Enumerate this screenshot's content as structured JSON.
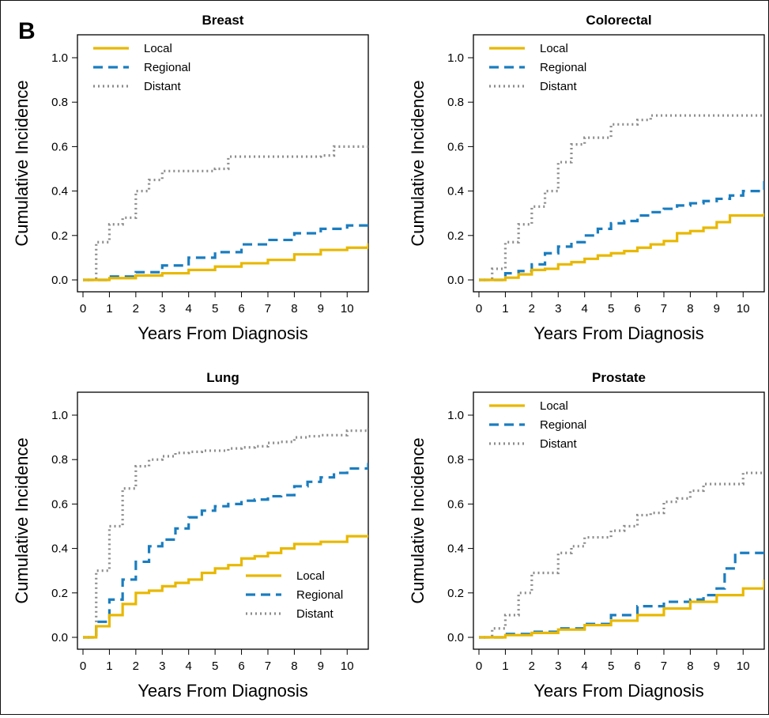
{
  "figure": {
    "panel_letter": "B"
  },
  "chart_data": [
    {
      "type": "line",
      "title": "Breast",
      "xlabel": "Years From Diagnosis",
      "ylabel": "Cumulative Incidence",
      "xlim": [
        0,
        10.8
      ],
      "ylim": [
        0,
        1.0
      ],
      "xticks": [
        "0",
        "1",
        "2",
        "3",
        "4",
        "5",
        "6",
        "7",
        "8",
        "9",
        "10"
      ],
      "yticks": [
        "0.0",
        "0.2",
        "0.4",
        "0.6",
        "0.8",
        "1.0"
      ],
      "legend": "top-left",
      "series": [
        {
          "name": "Local",
          "color": "#E8B800",
          "style": "solid",
          "x": [
            0,
            1,
            2,
            3,
            4,
            5,
            6,
            7,
            8,
            9,
            10,
            10.8
          ],
          "y": [
            0,
            0.008,
            0.02,
            0.03,
            0.045,
            0.06,
            0.075,
            0.09,
            0.115,
            0.135,
            0.145,
            0.165
          ]
        },
        {
          "name": "Regional",
          "color": "#1A7DC0",
          "style": "dashed",
          "x": [
            0,
            1,
            2,
            3,
            4,
            5,
            6,
            7,
            8,
            9,
            10,
            10.8
          ],
          "y": [
            0,
            0.015,
            0.035,
            0.065,
            0.1,
            0.125,
            0.16,
            0.18,
            0.21,
            0.23,
            0.245,
            0.265
          ]
        },
        {
          "name": "Distant",
          "color": "#8C8C8C",
          "style": "dotted",
          "x": [
            0,
            0.5,
            1,
            1.5,
            2,
            2.5,
            3,
            3.5,
            4,
            4.5,
            5,
            5.5,
            6,
            7,
            8,
            9,
            9.5,
            10,
            10.8
          ],
          "y": [
            0,
            0.17,
            0.25,
            0.28,
            0.4,
            0.45,
            0.49,
            0.49,
            0.49,
            0.49,
            0.5,
            0.555,
            0.555,
            0.555,
            0.555,
            0.56,
            0.6,
            0.6,
            0.6
          ]
        }
      ]
    },
    {
      "type": "line",
      "title": "Colorectal",
      "xlabel": "Years From Diagnosis",
      "ylabel": "Cumulative Incidence",
      "xlim": [
        0,
        10.8
      ],
      "ylim": [
        0,
        1.0
      ],
      "xticks": [
        "0",
        "1",
        "2",
        "3",
        "4",
        "5",
        "6",
        "7",
        "8",
        "9",
        "10"
      ],
      "yticks": [
        "0.0",
        "0.2",
        "0.4",
        "0.6",
        "0.8",
        "1.0"
      ],
      "legend": "top-left",
      "series": [
        {
          "name": "Local",
          "color": "#E8B800",
          "style": "solid",
          "x": [
            0,
            1,
            1.5,
            2,
            2.5,
            3,
            3.5,
            4,
            4.5,
            5,
            5.5,
            6,
            6.5,
            7,
            7.5,
            8,
            8.5,
            9,
            9.5,
            10,
            10.8
          ],
          "y": [
            0,
            0.01,
            0.025,
            0.045,
            0.05,
            0.07,
            0.08,
            0.095,
            0.11,
            0.12,
            0.13,
            0.145,
            0.16,
            0.175,
            0.21,
            0.22,
            0.235,
            0.26,
            0.29,
            0.29,
            0.3
          ]
        },
        {
          "name": "Regional",
          "color": "#1A7DC0",
          "style": "dashed",
          "x": [
            0,
            1,
            1.5,
            2,
            2.5,
            3,
            3.5,
            4,
            4.5,
            5,
            5.5,
            6,
            6.5,
            7,
            7.5,
            8,
            8.5,
            9,
            9.5,
            10,
            10.8
          ],
          "y": [
            0,
            0.03,
            0.04,
            0.07,
            0.12,
            0.15,
            0.17,
            0.2,
            0.23,
            0.255,
            0.265,
            0.29,
            0.305,
            0.32,
            0.335,
            0.345,
            0.355,
            0.365,
            0.38,
            0.4,
            0.445
          ]
        },
        {
          "name": "Distant",
          "color": "#8C8C8C",
          "style": "dotted",
          "x": [
            0,
            0.5,
            1,
            1.5,
            2,
            2.5,
            3,
            3.5,
            4,
            4.5,
            5,
            5.5,
            6,
            6.5,
            7,
            8,
            9,
            10,
            10.8
          ],
          "y": [
            0,
            0.05,
            0.17,
            0.25,
            0.33,
            0.4,
            0.53,
            0.61,
            0.64,
            0.64,
            0.7,
            0.7,
            0.72,
            0.74,
            0.74,
            0.74,
            0.74,
            0.74,
            0.74
          ]
        }
      ]
    },
    {
      "type": "line",
      "title": "Lung",
      "xlabel": "Years From Diagnosis",
      "ylabel": "Cumulative Incidence",
      "xlim": [
        0,
        10.8
      ],
      "ylim": [
        0,
        1.0
      ],
      "xticks": [
        "0",
        "1",
        "2",
        "3",
        "4",
        "5",
        "6",
        "7",
        "8",
        "9",
        "10"
      ],
      "yticks": [
        "0.0",
        "0.2",
        "0.4",
        "0.6",
        "0.8",
        "1.0"
      ],
      "legend": "bottom-right",
      "series": [
        {
          "name": "Local",
          "color": "#E8B800",
          "style": "solid",
          "x": [
            0,
            0.5,
            1,
            1.5,
            2,
            2.5,
            3,
            3.5,
            4,
            4.5,
            5,
            5.5,
            6,
            6.5,
            7,
            7.5,
            8,
            8.5,
            9,
            9.5,
            10,
            10.8
          ],
          "y": [
            0,
            0.05,
            0.1,
            0.15,
            0.2,
            0.21,
            0.23,
            0.245,
            0.26,
            0.29,
            0.31,
            0.325,
            0.355,
            0.365,
            0.38,
            0.4,
            0.42,
            0.42,
            0.43,
            0.43,
            0.455,
            0.455
          ]
        },
        {
          "name": "Regional",
          "color": "#1A7DC0",
          "style": "dashed",
          "x": [
            0,
            0.5,
            1,
            1.5,
            2,
            2.5,
            3,
            3.5,
            4,
            4.5,
            5,
            5.5,
            6,
            6.5,
            7,
            7.5,
            8,
            8.5,
            9,
            9.5,
            10,
            10.8
          ],
          "y": [
            0,
            0.07,
            0.17,
            0.26,
            0.34,
            0.41,
            0.44,
            0.49,
            0.54,
            0.57,
            0.59,
            0.6,
            0.615,
            0.62,
            0.635,
            0.64,
            0.68,
            0.7,
            0.72,
            0.74,
            0.76,
            0.785
          ]
        },
        {
          "name": "Distant",
          "color": "#8C8C8C",
          "style": "dotted",
          "x": [
            0,
            0.5,
            1,
            1.5,
            2,
            2.5,
            3,
            3.5,
            4,
            4.5,
            5,
            5.5,
            6,
            6.5,
            7,
            7.5,
            8,
            8.5,
            9,
            9.5,
            10,
            10.8
          ],
          "y": [
            0,
            0.3,
            0.5,
            0.67,
            0.77,
            0.8,
            0.815,
            0.83,
            0.835,
            0.84,
            0.84,
            0.85,
            0.855,
            0.86,
            0.875,
            0.88,
            0.9,
            0.905,
            0.91,
            0.91,
            0.93,
            0.94
          ]
        }
      ]
    },
    {
      "type": "line",
      "title": "Prostate",
      "xlabel": "Years From Diagnosis",
      "ylabel": "Cumulative Incidence",
      "xlim": [
        0,
        10.8
      ],
      "ylim": [
        0,
        1.0
      ],
      "xticks": [
        "0",
        "1",
        "2",
        "3",
        "4",
        "5",
        "6",
        "7",
        "8",
        "9",
        "10"
      ],
      "yticks": [
        "0.0",
        "0.2",
        "0.4",
        "0.6",
        "0.8",
        "1.0"
      ],
      "legend": "top-left",
      "series": [
        {
          "name": "Local",
          "color": "#E8B800",
          "style": "solid",
          "x": [
            0,
            1,
            2,
            3,
            4,
            5,
            6,
            7,
            8,
            9,
            10,
            10.8
          ],
          "y": [
            0,
            0.01,
            0.02,
            0.035,
            0.055,
            0.075,
            0.1,
            0.13,
            0.16,
            0.19,
            0.22,
            0.26
          ]
        },
        {
          "name": "Regional",
          "color": "#1A7DC0",
          "style": "dashed",
          "x": [
            0,
            1,
            2,
            3,
            4,
            5,
            6,
            7,
            8,
            8.5,
            9,
            9.3,
            9.7,
            10,
            10.8
          ],
          "y": [
            0,
            0.015,
            0.025,
            0.04,
            0.06,
            0.1,
            0.14,
            0.16,
            0.17,
            0.19,
            0.22,
            0.31,
            0.38,
            0.38,
            0.38
          ]
        },
        {
          "name": "Distant",
          "color": "#8C8C8C",
          "style": "dotted",
          "x": [
            0,
            0.5,
            1,
            1.5,
            2,
            2.5,
            3,
            3.5,
            4,
            4.5,
            5,
            5.5,
            6,
            6.5,
            7,
            7.5,
            8,
            8.5,
            9,
            9.5,
            10,
            10.8
          ],
          "y": [
            0,
            0.04,
            0.1,
            0.2,
            0.29,
            0.29,
            0.38,
            0.41,
            0.45,
            0.45,
            0.48,
            0.5,
            0.55,
            0.56,
            0.61,
            0.625,
            0.66,
            0.69,
            0.69,
            0.69,
            0.74,
            0.74
          ]
        }
      ]
    }
  ]
}
